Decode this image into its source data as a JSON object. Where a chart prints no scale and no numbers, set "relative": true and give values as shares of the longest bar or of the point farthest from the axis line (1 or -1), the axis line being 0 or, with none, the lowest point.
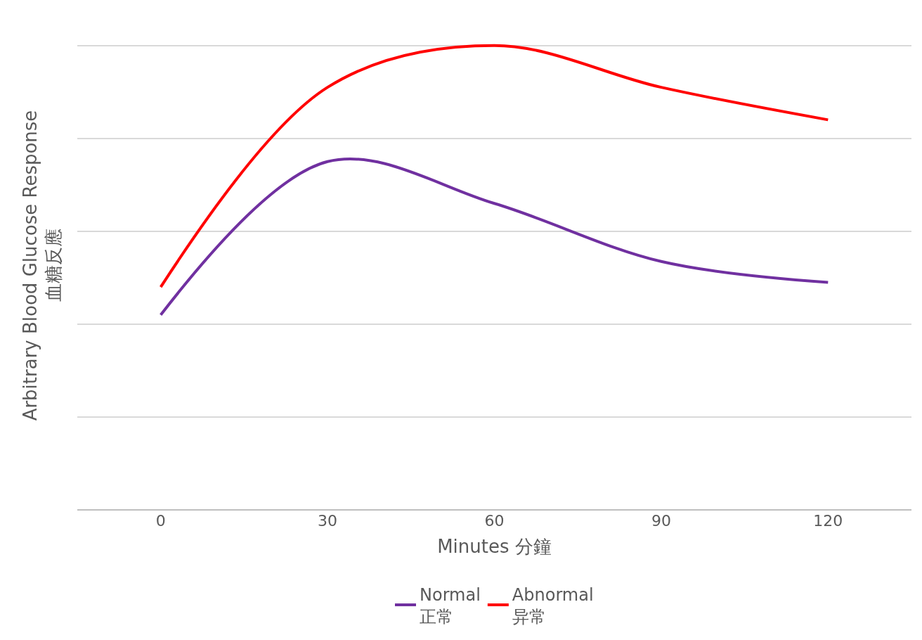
{
  "chart_data": {
    "type": "line",
    "relative": true,
    "xlabel": "Minutes 分鐘",
    "ylabel": "Arbitrary Blood Glucose Response\n血糖反應",
    "x": [
      0,
      30,
      60,
      90,
      120
    ],
    "xlim": [
      -15,
      135
    ],
    "xticks": [
      0,
      30,
      60,
      90,
      120
    ],
    "grid": "y",
    "legend": "bottom",
    "marker": "none",
    "line_style": "solid",
    "series": [
      {
        "name": "Normal\n正常",
        "color": "#7030a0",
        "values": [
          0.42,
          0.75,
          0.66,
          0.535,
          0.49
        ]
      },
      {
        "name": "Abnormal\n异常",
        "color": "#ff0000",
        "values": [
          0.48,
          0.91,
          1.0,
          0.91,
          0.84
        ]
      }
    ]
  }
}
